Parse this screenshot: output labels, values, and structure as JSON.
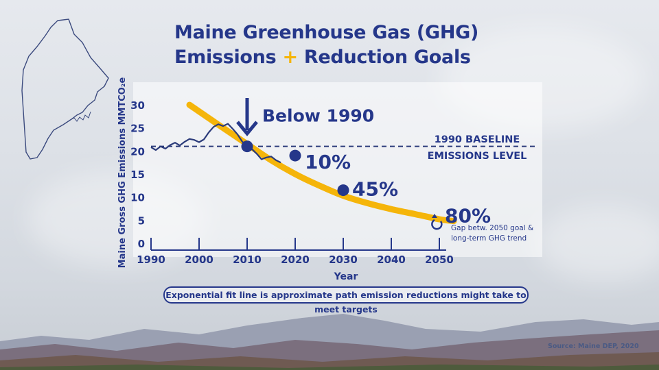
{
  "title": {
    "line1": "Maine Greenhouse Gas (GHG)",
    "line2_a": "Emissions",
    "plus": "+",
    "line2_b": "Reduction Goals"
  },
  "footnote": "Exponential fit line is approximate path emission reductions might take to meet targets",
  "source": "Source: Maine DEP, 2020",
  "colors": {
    "navy": "#25378a",
    "gold": "#f5b50a",
    "line": "#2b3b7a"
  },
  "chart_data": {
    "type": "line",
    "xlabel": "Year",
    "ylabel": "Maine Gross GHG Emissions MMTCO₂e",
    "x_ticks": [
      1990,
      2000,
      2010,
      2020,
      2030,
      2040,
      2050
    ],
    "y_ticks": [
      0,
      5,
      10,
      15,
      20,
      25,
      30
    ],
    "xlim": [
      1990,
      2050
    ],
    "ylim": [
      0,
      30
    ],
    "grid": false,
    "series": [
      {
        "kind": "historical",
        "x": [
          1990,
          1991,
          1992,
          1993,
          1994,
          1995,
          1996,
          1997,
          1998,
          1999,
          2000,
          2001,
          2002,
          2003,
          2004,
          2005,
          2006,
          2007,
          2008,
          2009,
          2010,
          2011,
          2012,
          2013,
          2014,
          2015,
          2016,
          2017
        ],
        "y": [
          20.8,
          20.2,
          21.0,
          20.5,
          21.3,
          21.8,
          21.2,
          22.0,
          22.6,
          22.4,
          21.9,
          22.5,
          24.0,
          25.2,
          25.8,
          25.4,
          25.9,
          24.8,
          23.6,
          22.0,
          21.2,
          20.4,
          19.4,
          18.2,
          18.6,
          18.8,
          18.0,
          17.5
        ]
      },
      {
        "kind": "exponential-fit",
        "x": [
          1998,
          2005,
          2010,
          2015,
          2020,
          2025,
          2030,
          2035,
          2040,
          2045,
          2050,
          2053
        ],
        "y": [
          30.0,
          25.0,
          21.5,
          18.0,
          15.0,
          12.5,
          10.3,
          8.7,
          7.4,
          6.3,
          5.2,
          4.8
        ]
      }
    ],
    "targets": [
      {
        "x": 2010,
        "y": 21.0,
        "label": "Below 1990"
      },
      {
        "x": 2020,
        "y": 19.0,
        "label": "10%"
      },
      {
        "x": 2030,
        "y": 11.5,
        "label": "45%"
      },
      {
        "x": 2050,
        "y": 4.2,
        "label": "80%"
      }
    ],
    "baseline": {
      "y": 21.0,
      "label_line1": "1990 BASELINE",
      "label_line2": "EMISSIONS LEVEL"
    },
    "annotations": [
      {
        "text_line1": "Gap betw. 2050 goal &",
        "text_line2": "long-term GHG trend"
      }
    ]
  }
}
